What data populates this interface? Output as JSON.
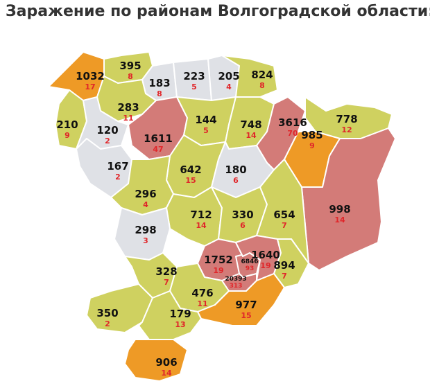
{
  "title": "Заражение по районам Волгоградской области:",
  "regions": [
    {
      "cases": 1032,
      "deaths": 17,
      "color": "#ee9a26"
    },
    {
      "cases": 395,
      "deaths": 8,
      "color": "#cfd160"
    },
    {
      "cases": 183,
      "deaths": 8,
      "color": "#dfe1e6"
    },
    {
      "cases": 223,
      "deaths": 5,
      "color": "#dfe1e6"
    },
    {
      "cases": 205,
      "deaths": 4,
      "color": "#dfe1e6"
    },
    {
      "cases": 824,
      "deaths": 8,
      "color": "#cfd160"
    },
    {
      "cases": 283,
      "deaths": 11,
      "color": "#cfd160"
    },
    {
      "cases": 210,
      "deaths": 9,
      "color": "#cfd160"
    },
    {
      "cases": 120,
      "deaths": 2,
      "color": "#dfe1e6"
    },
    {
      "cases": 1611,
      "deaths": 47,
      "color": "#d37b78"
    },
    {
      "cases": 144,
      "deaths": 5,
      "color": "#cfd160"
    },
    {
      "cases": 748,
      "deaths": 14,
      "color": "#cfd160"
    },
    {
      "cases": 3616,
      "deaths": 70,
      "color": "#d37b78"
    },
    {
      "cases": 778,
      "deaths": 12,
      "color": "#cfd160"
    },
    {
      "cases": 985,
      "deaths": 9,
      "color": "#ee9a26"
    },
    {
      "cases": 167,
      "deaths": 2,
      "color": "#dfe1e6"
    },
    {
      "cases": 642,
      "deaths": 15,
      "color": "#cfd160"
    },
    {
      "cases": 180,
      "deaths": 6,
      "color": "#dfe1e6"
    },
    {
      "cases": 296,
      "deaths": 4,
      "color": "#cfd160"
    },
    {
      "cases": 998,
      "deaths": 14,
      "color": "#d37b78"
    },
    {
      "cases": 712,
      "deaths": 14,
      "color": "#cfd160"
    },
    {
      "cases": 330,
      "deaths": 6,
      "color": "#cfd160"
    },
    {
      "cases": 654,
      "deaths": 7,
      "color": "#cfd160"
    },
    {
      "cases": 298,
      "deaths": 3,
      "color": "#dfe1e6"
    },
    {
      "cases": 1752,
      "deaths": 19,
      "color": "#d37b78"
    },
    {
      "cases": 6846,
      "deaths": 93,
      "color": "#d37b78"
    },
    {
      "cases": 1640,
      "deaths": 19,
      "color": "#d37b78"
    },
    {
      "cases": 894,
      "deaths": 7,
      "color": "#cfd160"
    },
    {
      "cases": 20393,
      "deaths": 313,
      "color": "#d37b78"
    },
    {
      "cases": 328,
      "deaths": 7,
      "color": "#cfd160"
    },
    {
      "cases": 476,
      "deaths": 11,
      "color": "#cfd160"
    },
    {
      "cases": 977,
      "deaths": 15,
      "color": "#ee9a26"
    },
    {
      "cases": 350,
      "deaths": 2,
      "color": "#cfd160"
    },
    {
      "cases": 179,
      "deaths": 13,
      "color": "#cfd160"
    },
    {
      "cases": 906,
      "deaths": 14,
      "color": "#ee9a26"
    }
  ]
}
